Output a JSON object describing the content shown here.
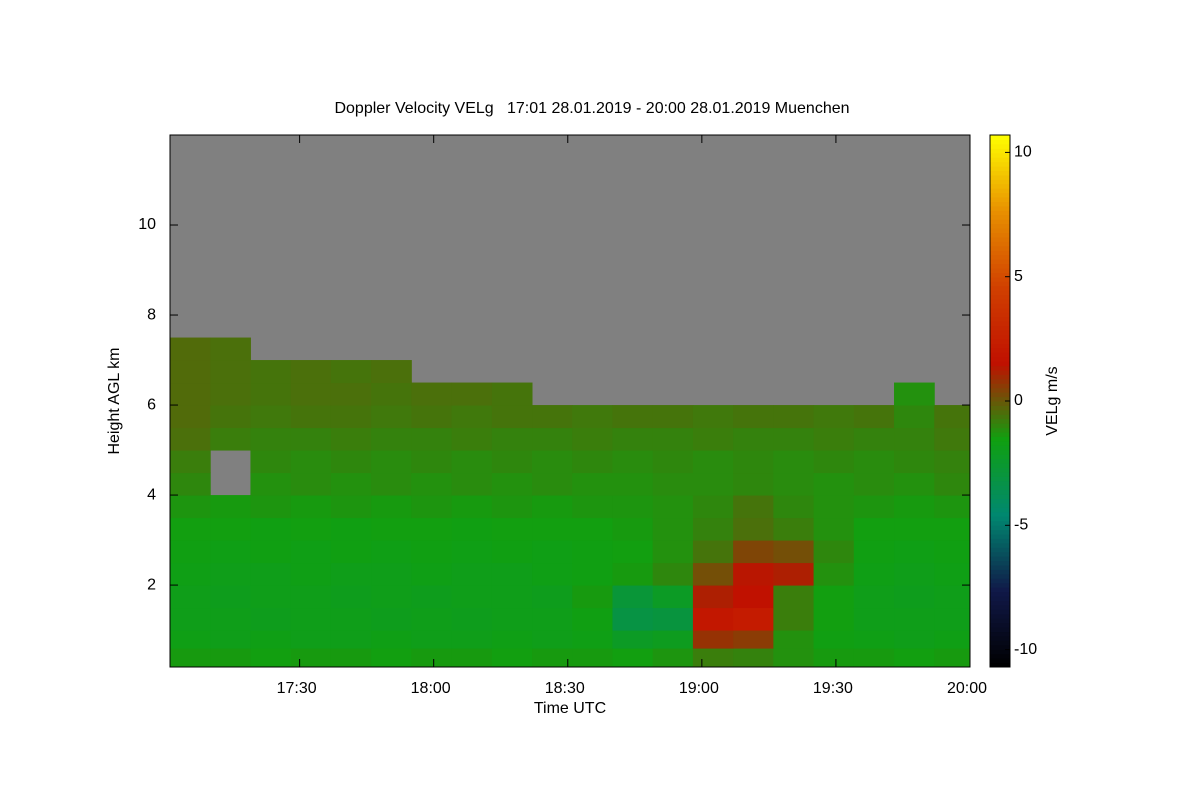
{
  "chart_data": {
    "type": "heatmap",
    "title": "Doppler Velocity VELg   17:01 28.01.2019 - 20:00 28.01.2019 Muenchen",
    "x_label": "Time UTC",
    "y_label": "Height AGL km",
    "colorbar_label": "VELg m/s",
    "xlim": [
      1021,
      1200
    ],
    "xticks": [
      {
        "value": 1050,
        "label": "17:30"
      },
      {
        "value": 1080,
        "label": "18:00"
      },
      {
        "value": 1110,
        "label": "18:30"
      },
      {
        "value": 1140,
        "label": "19:00"
      },
      {
        "value": 1170,
        "label": "19:30"
      },
      {
        "value": 1200,
        "label": "20:00"
      }
    ],
    "ylim": [
      0.18,
      12
    ],
    "yticks": [
      2,
      4,
      6,
      8,
      10
    ],
    "zlim": [
      -10.7,
      10.7
    ],
    "zticks": [
      -10,
      -5,
      0,
      5,
      10
    ],
    "colorscale": [
      "#000000",
      "#101848",
      "#008870",
      "#10a010",
      "#c01000",
      "#d04000",
      "#e89000",
      "#ffff00"
    ],
    "missing_color": "#808080",
    "xbins": [
      1021,
      1030,
      1039,
      1048,
      1057,
      1066,
      1075,
      1084,
      1093,
      1102,
      1111,
      1120,
      1129,
      1138,
      1147,
      1156,
      1165,
      1174,
      1183,
      1192,
      1200
    ],
    "ybins": [
      0.18,
      0.6,
      1,
      1.5,
      2,
      2.5,
      3,
      3.5,
      4,
      4.5,
      5,
      5.5,
      6,
      6.5,
      7,
      7.5,
      12
    ],
    "z": [
      [
        -1.4,
        -1.4,
        -1.5,
        -1.4,
        -1.4,
        -1.5,
        -1.4,
        -1.4,
        -1.5,
        -1.4,
        -1.4,
        -1.5,
        -1.3,
        -0.8,
        -0.9,
        -1.2,
        -1.4,
        -1.4,
        -1.5,
        -1.4
      ],
      [
        -1.7,
        -1.8,
        -1.7,
        -1.8,
        -1.8,
        -1.7,
        -1.8,
        -1.8,
        -1.7,
        -1.8,
        -1.7,
        -2.2,
        -2.0,
        0.8,
        0.6,
        -1.2,
        -1.6,
        -1.7,
        -1.8,
        -1.7
      ],
      [
        -1.8,
        -1.8,
        -1.9,
        -1.8,
        -1.8,
        -1.9,
        -1.8,
        -1.9,
        -1.8,
        -1.8,
        -1.6,
        -3.2,
        -3.0,
        2.0,
        2.2,
        -0.8,
        -1.5,
        -1.8,
        -1.8,
        -1.8
      ],
      [
        -1.8,
        -1.9,
        -1.8,
        -1.8,
        -1.9,
        -1.8,
        -1.9,
        -1.8,
        -1.8,
        -1.9,
        -1.4,
        -2.8,
        -2.2,
        1.2,
        1.6,
        -0.8,
        -1.5,
        -1.8,
        -1.9,
        -1.8
      ],
      [
        -1.7,
        -1.8,
        -1.8,
        -1.7,
        -1.8,
        -1.8,
        -1.7,
        -1.8,
        -1.8,
        -1.7,
        -1.6,
        -1.4,
        -1.0,
        0.2,
        1.4,
        1.2,
        -1.2,
        -1.7,
        -1.8,
        -1.7
      ],
      [
        -1.6,
        -1.7,
        -1.6,
        -1.7,
        -1.6,
        -1.7,
        -1.6,
        -1.7,
        -1.6,
        -1.7,
        -1.6,
        -1.5,
        -1.2,
        -0.6,
        0.4,
        0.2,
        -1.0,
        -1.6,
        -1.7,
        -1.6
      ],
      [
        -1.5,
        -1.5,
        -1.6,
        -1.5,
        -1.6,
        -1.5,
        -1.5,
        -1.6,
        -1.5,
        -1.5,
        -1.5,
        -1.4,
        -1.2,
        -0.9,
        -0.5,
        -0.8,
        -1.2,
        -1.5,
        -1.5,
        -1.5
      ],
      [
        -1.3,
        -1.4,
        -1.3,
        -1.4,
        -1.3,
        -1.4,
        -1.3,
        -1.4,
        -1.3,
        -1.4,
        -1.3,
        -1.3,
        -1.2,
        -1.0,
        -0.6,
        -1.0,
        -1.2,
        -1.3,
        -1.4,
        -1.3
      ],
      [
        -1.0,
        null,
        -1.2,
        -1.1,
        -1.2,
        -1.1,
        -1.2,
        -1.1,
        -1.2,
        -1.1,
        -1.2,
        -1.2,
        -1.1,
        -1.1,
        -1.0,
        -1.1,
        -1.2,
        -1.1,
        -1.2,
        -1.0
      ],
      [
        -0.8,
        null,
        -1.0,
        -1.1,
        -1.0,
        -1.1,
        -1.0,
        -1.1,
        -1.0,
        -1.1,
        -1.0,
        -1.1,
        -1.0,
        -1.1,
        -1.0,
        -1.1,
        -1.0,
        -1.1,
        -1.0,
        -0.9
      ],
      [
        -0.5,
        -0.8,
        -0.9,
        -0.9,
        -0.8,
        -0.9,
        -0.9,
        -0.8,
        -0.9,
        -0.9,
        -0.8,
        -0.9,
        -0.9,
        -0.8,
        -0.9,
        -0.9,
        -0.8,
        -0.9,
        -0.9,
        -0.7
      ],
      [
        -0.4,
        -0.6,
        -0.7,
        -0.6,
        -0.6,
        -0.7,
        -0.6,
        -0.7,
        -0.6,
        -0.6,
        -0.7,
        -0.6,
        -0.6,
        -0.7,
        -0.6,
        -0.6,
        -0.7,
        -0.6,
        -1.0,
        -0.6
      ],
      [
        -0.4,
        -0.5,
        -0.6,
        -0.5,
        -0.5,
        -0.6,
        -0.5,
        -0.5,
        -0.6,
        null,
        null,
        null,
        null,
        null,
        null,
        null,
        null,
        null,
        -1.2,
        null
      ],
      [
        -0.4,
        -0.5,
        -0.6,
        -0.5,
        -0.6,
        -0.5,
        null,
        null,
        null,
        null,
        null,
        null,
        null,
        null,
        null,
        null,
        null,
        null,
        null,
        null
      ],
      [
        -0.4,
        -0.5,
        null,
        null,
        null,
        null,
        null,
        null,
        null,
        null,
        null,
        null,
        null,
        null,
        null,
        null,
        null,
        null,
        null,
        null
      ],
      [
        null,
        null,
        null,
        null,
        null,
        null,
        null,
        null,
        null,
        null,
        null,
        null,
        null,
        null,
        null,
        null,
        null,
        null,
        null,
        null
      ]
    ]
  }
}
